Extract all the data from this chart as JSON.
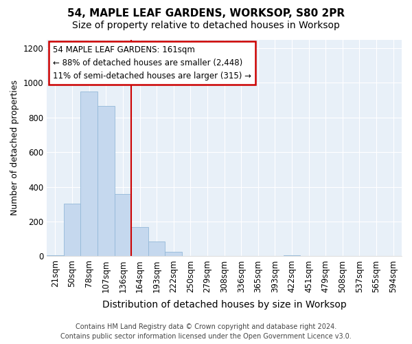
{
  "title": "54, MAPLE LEAF GARDENS, WORKSOP, S80 2PR",
  "subtitle": "Size of property relative to detached houses in Worksop",
  "xlabel": "Distribution of detached houses by size in Worksop",
  "ylabel": "Number of detached properties",
  "bin_labels": [
    "21sqm",
    "50sqm",
    "78sqm",
    "107sqm",
    "136sqm",
    "164sqm",
    "193sqm",
    "222sqm",
    "250sqm",
    "279sqm",
    "308sqm",
    "336sqm",
    "365sqm",
    "393sqm",
    "422sqm",
    "451sqm",
    "479sqm",
    "508sqm",
    "537sqm",
    "565sqm",
    "594sqm"
  ],
  "bar_heights": [
    5,
    305,
    950,
    865,
    360,
    170,
    85,
    25,
    0,
    0,
    0,
    0,
    0,
    0,
    5,
    0,
    0,
    0,
    0,
    0,
    0
  ],
  "bar_color": "#c5d8ee",
  "bar_edge_color": "#94b8d8",
  "vline_color": "#cc0000",
  "annotation_line1": "54 MAPLE LEAF GARDENS: 161sqm",
  "annotation_line2": "← 88% of detached houses are smaller (2,448)",
  "annotation_line3": "11% of semi-detached houses are larger (315) →",
  "annotation_box_facecolor": "#ffffff",
  "annotation_box_edgecolor": "#cc0000",
  "ylim": [
    0,
    1250
  ],
  "yticks": [
    0,
    200,
    400,
    600,
    800,
    1000,
    1200
  ],
  "footer": "Contains HM Land Registry data © Crown copyright and database right 2024.\nContains public sector information licensed under the Open Government Licence v3.0.",
  "fig_background": "#ffffff",
  "plot_background": "#e8f0f8",
  "grid_color": "#ffffff",
  "title_fontsize": 11,
  "subtitle_fontsize": 10,
  "xlabel_fontsize": 10,
  "ylabel_fontsize": 9,
  "tick_fontsize": 8.5,
  "footer_fontsize": 7
}
